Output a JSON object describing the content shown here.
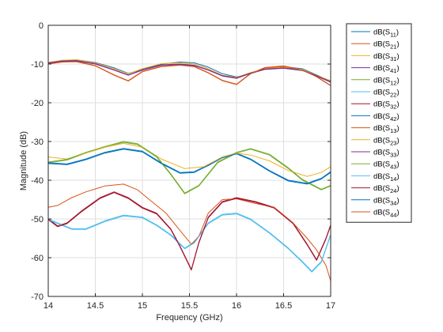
{
  "chart_data": {
    "type": "line",
    "xlabel": "Frequency (GHz)",
    "ylabel": "Magnitude (dB)",
    "xlim": [
      14,
      17
    ],
    "ylim": [
      -70,
      0
    ],
    "xticks": [
      14,
      14.5,
      15,
      15.5,
      16,
      16.5,
      17
    ],
    "xtick_labels": [
      "14",
      "14.5",
      "15",
      "15.5",
      "16",
      "16.5",
      "17"
    ],
    "yticks": [
      0,
      -10,
      -20,
      -30,
      -40,
      -50,
      -60,
      -70
    ],
    "ytick_labels": [
      "0",
      "-10",
      "-20",
      "-30",
      "-40",
      "-50",
      "-60",
      "-70"
    ],
    "grid": true,
    "legend": "outside-right",
    "series": [
      {
        "name": "dB(S11)",
        "base": "dB(S",
        "sub": "11",
        "tail": ")",
        "color": "#0072BD",
        "x": [
          14.0,
          14.15,
          14.3,
          14.5,
          14.7,
          14.85,
          15.0,
          15.2,
          15.4,
          15.55,
          15.7,
          15.85,
          16.0,
          16.15,
          16.3,
          16.5,
          16.7,
          16.85,
          17.0
        ],
        "y": [
          -9.8,
          -9.1,
          -8.9,
          -9.6,
          -11.0,
          -12.4,
          -11.4,
          -10.0,
          -9.5,
          -9.7,
          -10.8,
          -12.5,
          -13.3,
          -12.5,
          -11.3,
          -10.7,
          -11.2,
          -12.8,
          -14.5
        ]
      },
      {
        "name": "dB(S21)",
        "base": "dB(S",
        "sub": "21",
        "tail": ")",
        "color": "#D95319",
        "x": [
          14.0,
          14.15,
          14.3,
          14.5,
          14.7,
          14.85,
          15.0,
          15.2,
          15.4,
          15.55,
          15.7,
          15.85,
          16.0,
          16.15,
          16.3,
          16.5,
          16.7,
          16.85,
          17.0
        ],
        "y": [
          -9.9,
          -9.4,
          -9.3,
          -10.4,
          -12.8,
          -14.3,
          -11.9,
          -10.6,
          -10.2,
          -10.6,
          -12.2,
          -14.2,
          -15.2,
          -12.4,
          -10.9,
          -10.5,
          -11.5,
          -13.2,
          -15.5
        ]
      },
      {
        "name": "dB(S31)",
        "base": "dB(S",
        "sub": "31",
        "tail": ")",
        "color": "#EDB120",
        "x": [
          14.0,
          14.15,
          14.3,
          14.5,
          14.7,
          14.85,
          15.0,
          15.2,
          15.4,
          15.55,
          15.7,
          15.85,
          16.0,
          16.15,
          16.3,
          16.5,
          16.7,
          16.85,
          17.0
        ],
        "y": [
          -9.6,
          -9.0,
          -8.9,
          -9.7,
          -11.2,
          -12.5,
          -11.2,
          -9.9,
          -9.7,
          -10.0,
          -11.2,
          -12.9,
          -13.4,
          -12.2,
          -11.2,
          -10.8,
          -11.4,
          -12.9,
          -14.3
        ]
      },
      {
        "name": "dB(S41)",
        "base": "dB(S",
        "sub": "41",
        "tail": ")",
        "color": "#7E2F8E",
        "x": [
          14.0,
          14.15,
          14.3,
          14.5,
          14.7,
          14.85,
          15.0,
          15.2,
          15.4,
          15.55,
          15.7,
          15.85,
          16.0,
          16.15,
          16.3,
          16.5,
          16.7,
          16.85,
          17.0
        ],
        "y": [
          -9.7,
          -9.2,
          -9.1,
          -9.9,
          -11.5,
          -12.8,
          -11.5,
          -10.2,
          -10.0,
          -10.3,
          -11.5,
          -13.0,
          -13.6,
          -12.3,
          -11.3,
          -11.0,
          -11.6,
          -13.0,
          -14.6
        ]
      },
      {
        "name": "dB(S12)",
        "base": "dB(S",
        "sub": "12",
        "tail": ")",
        "color": "#77AC30",
        "x": [
          14.0,
          14.2,
          14.4,
          14.6,
          14.8,
          14.95,
          15.15,
          15.3,
          15.45,
          15.6,
          15.8,
          16.0,
          16.15,
          16.35,
          16.55,
          16.7,
          16.9,
          17.0
        ],
        "y": [
          -35.5,
          -34.8,
          -33.0,
          -31.5,
          -30.2,
          -30.8,
          -34.0,
          -38.5,
          -43.5,
          -41.5,
          -35.5,
          -33.0,
          -32.0,
          -33.5,
          -37.0,
          -40.0,
          -42.5,
          -41.5
        ]
      },
      {
        "name": "dB(S22)",
        "base": "dB(S",
        "sub": "22",
        "tail": ")",
        "color": "#4DBEEE",
        "x": [
          14.0,
          14.1,
          14.25,
          14.4,
          14.6,
          14.8,
          15.0,
          15.15,
          15.3,
          15.45,
          15.55,
          15.7,
          15.85,
          16.0,
          16.15,
          16.35,
          16.55,
          16.7,
          16.8,
          16.9,
          17.0
        ],
        "y": [
          -50.0,
          -51.0,
          -52.5,
          -52.5,
          -50.5,
          -49.0,
          -49.5,
          -51.5,
          -54.0,
          -57.5,
          -56.0,
          -51.0,
          -48.8,
          -48.5,
          -50.0,
          -53.5,
          -57.5,
          -61.0,
          -63.5,
          -61.0,
          -54.0
        ]
      },
      {
        "name": "dB(S32)",
        "base": "dB(S",
        "sub": "32",
        "tail": ")",
        "color": "#A2142F",
        "x": [
          14.0,
          14.1,
          14.2,
          14.35,
          14.55,
          14.7,
          14.85,
          15.0,
          15.15,
          15.3,
          15.4,
          15.52,
          15.6,
          15.7,
          15.85,
          16.0,
          16.2,
          16.4,
          16.6,
          16.75,
          16.85,
          16.95,
          17.0
        ],
        "y": [
          -50.0,
          -51.8,
          -51.0,
          -48.0,
          -44.5,
          -43.0,
          -44.5,
          -47.0,
          -48.5,
          -52.5,
          -57.0,
          -63.0,
          -56.0,
          -49.5,
          -45.5,
          -44.5,
          -45.5,
          -47.0,
          -51.0,
          -56.5,
          -60.5,
          -55.0,
          -51.5
        ]
      },
      {
        "name": "dB(S42)",
        "base": "dB(S",
        "sub": "42",
        "tail": ")",
        "color": "#0072BD",
        "x": [
          14.0,
          14.2,
          14.4,
          14.6,
          14.8,
          15.0,
          15.2,
          15.4,
          15.55,
          15.7,
          15.85,
          16.0,
          16.15,
          16.35,
          16.55,
          16.75,
          16.9,
          17.0
        ],
        "y": [
          -35.5,
          -35.8,
          -34.5,
          -32.8,
          -31.8,
          -32.5,
          -35.5,
          -38.0,
          -37.8,
          -36.0,
          -34.0,
          -33.0,
          -34.5,
          -37.5,
          -40.0,
          -40.8,
          -39.5,
          -37.8
        ]
      },
      {
        "name": "dB(S13)",
        "base": "dB(S",
        "sub": "13",
        "tail": ")",
        "color": "#D95319",
        "x": [
          14.0,
          14.1,
          14.25,
          14.4,
          14.6,
          14.8,
          14.95,
          15.1,
          15.25,
          15.4,
          15.52,
          15.6,
          15.7,
          15.85,
          16.0,
          16.2,
          16.4,
          16.6,
          16.75,
          16.85,
          16.95,
          17.0
        ],
        "y": [
          -47.0,
          -46.5,
          -44.5,
          -43.0,
          -41.5,
          -41.0,
          -42.5,
          -45.5,
          -48.5,
          -53.0,
          -56.5,
          -54.5,
          -48.5,
          -45.0,
          -44.8,
          -46.0,
          -47.0,
          -51.0,
          -55.0,
          -58.0,
          -62.0,
          -66.0
        ]
      },
      {
        "name": "dB(S23)",
        "base": "dB(S",
        "sub": "23",
        "tail": ")",
        "color": "#EDB120",
        "x": [
          14.0,
          14.2,
          14.4,
          14.6,
          14.8,
          15.0,
          15.2,
          15.45,
          15.65,
          15.85,
          16.0,
          16.15,
          16.35,
          16.55,
          16.75,
          16.9,
          17.0
        ],
        "y": [
          -34.0,
          -34.5,
          -33.0,
          -31.5,
          -30.5,
          -31.5,
          -34.5,
          -37.0,
          -36.5,
          -34.0,
          -33.0,
          -33.5,
          -35.0,
          -37.5,
          -39.0,
          -38.0,
          -36.5
        ]
      },
      {
        "name": "dB(S33)",
        "base": "dB(S",
        "sub": "33",
        "tail": ")",
        "color": "#7E2F8E",
        "x": [
          14.0,
          14.15,
          14.3,
          14.5,
          14.7,
          14.85,
          15.0,
          15.2,
          15.4,
          15.55,
          15.7,
          15.85,
          16.0,
          16.15,
          16.3,
          16.5,
          16.7,
          16.85,
          17.0
        ],
        "y": [
          -9.8,
          -9.3,
          -9.2,
          -10.0,
          -11.6,
          -12.9,
          -11.6,
          -10.3,
          -10.1,
          -10.4,
          -11.6,
          -13.1,
          -13.7,
          -12.4,
          -11.4,
          -11.1,
          -11.7,
          -13.1,
          -14.7
        ]
      },
      {
        "name": "dB(S43)",
        "base": "dB(S",
        "sub": "43",
        "tail": ")",
        "color": "#77AC30",
        "x": [
          14.0,
          14.2,
          14.4,
          14.6,
          14.8,
          14.95,
          15.15,
          15.3,
          15.45,
          15.6,
          15.8,
          16.0,
          16.15,
          16.35,
          16.55,
          16.7,
          16.9,
          17.0
        ],
        "y": [
          -35.3,
          -34.6,
          -32.8,
          -31.3,
          -30.0,
          -30.6,
          -33.8,
          -38.3,
          -43.3,
          -41.3,
          -35.3,
          -32.8,
          -31.8,
          -33.3,
          -36.8,
          -39.8,
          -42.3,
          -41.3
        ]
      },
      {
        "name": "dB(S14)",
        "base": "dB(S",
        "sub": "14",
        "tail": ")",
        "color": "#4DBEEE",
        "x": [
          14.0,
          14.1,
          14.25,
          14.4,
          14.6,
          14.8,
          15.0,
          15.15,
          15.3,
          15.45,
          15.55,
          15.7,
          15.85,
          16.0,
          16.15,
          16.35,
          16.55,
          16.7,
          16.8,
          16.9,
          17.0
        ],
        "y": [
          -50.2,
          -51.2,
          -52.7,
          -52.7,
          -50.7,
          -49.2,
          -49.7,
          -51.7,
          -54.2,
          -57.7,
          -56.2,
          -51.2,
          -49.0,
          -48.7,
          -50.2,
          -53.7,
          -57.7,
          -61.2,
          -63.7,
          -61.2,
          -54.2
        ]
      },
      {
        "name": "dB(S24)",
        "base": "dB(S",
        "sub": "24",
        "tail": ")",
        "color": "#A2142F",
        "x": [
          14.0,
          14.1,
          14.2,
          14.35,
          14.55,
          14.7,
          14.85,
          15.0,
          15.15,
          15.3,
          15.4,
          15.52,
          15.6,
          15.7,
          15.85,
          16.0,
          16.2,
          16.4,
          16.6,
          16.75,
          16.85,
          16.95,
          17.0
        ],
        "y": [
          -50.2,
          -52.0,
          -51.2,
          -48.2,
          -44.7,
          -43.2,
          -44.7,
          -47.2,
          -48.7,
          -52.7,
          -57.2,
          -63.2,
          -56.2,
          -49.7,
          -45.7,
          -44.7,
          -45.7,
          -47.2,
          -51.2,
          -56.7,
          -60.7,
          -55.2,
          -51.7
        ]
      },
      {
        "name": "dB(S34)",
        "base": "dB(S",
        "sub": "34",
        "tail": ")",
        "color": "#0072BD",
        "x": [
          14.0,
          14.2,
          14.4,
          14.6,
          14.8,
          15.0,
          15.2,
          15.4,
          15.55,
          15.7,
          15.85,
          16.0,
          16.15,
          16.35,
          16.55,
          16.75,
          16.9,
          17.0
        ],
        "y": [
          -35.7,
          -36.0,
          -34.7,
          -33.0,
          -32.0,
          -32.7,
          -35.7,
          -38.2,
          -38.0,
          -36.2,
          -34.2,
          -33.2,
          -34.7,
          -37.7,
          -40.2,
          -41.0,
          -39.7,
          -38.0
        ]
      },
      {
        "name": "dB(S44)",
        "base": "dB(S",
        "sub": "44",
        "tail": ")",
        "color": "#D95319",
        "x": [
          14.0,
          14.15,
          14.3,
          14.5,
          14.7,
          14.85,
          15.0,
          15.2,
          15.4,
          15.55,
          15.7,
          15.85,
          16.0,
          16.15,
          16.3,
          16.5,
          16.7,
          16.85,
          17.0
        ],
        "y": [
          -10.0,
          -9.5,
          -9.4,
          -10.5,
          -12.9,
          -14.4,
          -12.0,
          -10.7,
          -10.3,
          -10.7,
          -12.3,
          -14.3,
          -15.3,
          -12.5,
          -11.0,
          -10.6,
          -11.6,
          -13.3,
          -15.6
        ]
      }
    ]
  }
}
